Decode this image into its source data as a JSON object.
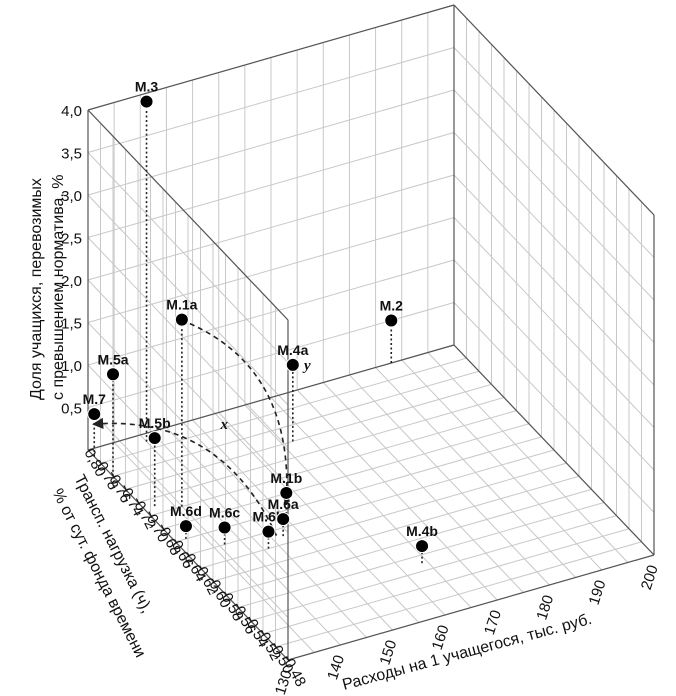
{
  "chart_data": {
    "type": "scatter",
    "subtype": "3d-scatter",
    "xlabel": "Расходы на 1  учащегося, тыс. руб.",
    "ylabel_lines": [
      "Трансп. нагрузка (ч),",
      "% от сут. фонда времени"
    ],
    "zlabel_lines": [
      "Доля учащихся, перевозимых",
      "с превышением норматива, %"
    ],
    "xlim": [
      130,
      200
    ],
    "ylim": [
      0.48,
      0.8
    ],
    "zlim": [
      0.0,
      4.0
    ],
    "x_ticks": [
      "130",
      "140",
      "150",
      "160",
      "170",
      "180",
      "190",
      "200"
    ],
    "y_ticks": [
      "0,48",
      "0,50",
      "0,52",
      "0,54",
      "0,56",
      "0,58",
      "0,60",
      "0,62",
      "0,64",
      "0,66",
      "0,68",
      "0,70",
      "0,72",
      "0,74",
      "0,76",
      "0,78",
      "0,80"
    ],
    "z_ticks": [
      "0,5",
      "1,0",
      "1,5",
      "2,0",
      "2,5",
      "3,0",
      "3,5",
      "4,0"
    ],
    "grid": true,
    "points": [
      {
        "label": "М.3",
        "x": 140,
        "y": 0.79,
        "z": 4.0
      },
      {
        "label": "М.1a",
        "x": 136,
        "y": 0.7,
        "z": 2.2
      },
      {
        "label": "М.5a",
        "x": 130,
        "y": 0.76,
        "z": 1.2
      },
      {
        "label": "М.5b",
        "x": 132,
        "y": 0.71,
        "z": 0.8
      },
      {
        "label": "М.7",
        "x": 130,
        "y": 0.79,
        "z": 0.5
      },
      {
        "label": "М.6d",
        "x": 132,
        "y": 0.66,
        "z": 0.15
      },
      {
        "label": "М.6c",
        "x": 137,
        "y": 0.64,
        "z": 0.2
      },
      {
        "label": "М.6b",
        "x": 143,
        "y": 0.62,
        "z": 0.2
      },
      {
        "label": "М.6a",
        "x": 147,
        "y": 0.63,
        "z": 0.2
      },
      {
        "label": "М.1b",
        "x": 150,
        "y": 0.65,
        "z": 0.3
      },
      {
        "label": "М.4a",
        "x": 162,
        "y": 0.74,
        "z": 0.9
      },
      {
        "label": "М.2",
        "x": 188,
        "y": 0.8,
        "z": 0.5
      },
      {
        "label": "М.4b",
        "x": 164,
        "y": 0.55,
        "z": 0.2
      }
    ],
    "annotations": [
      {
        "text": "y",
        "from": "М.1a",
        "to": "М.1b"
      },
      {
        "text": "x",
        "from": "М.6b",
        "to": "М.7"
      }
    ]
  }
}
